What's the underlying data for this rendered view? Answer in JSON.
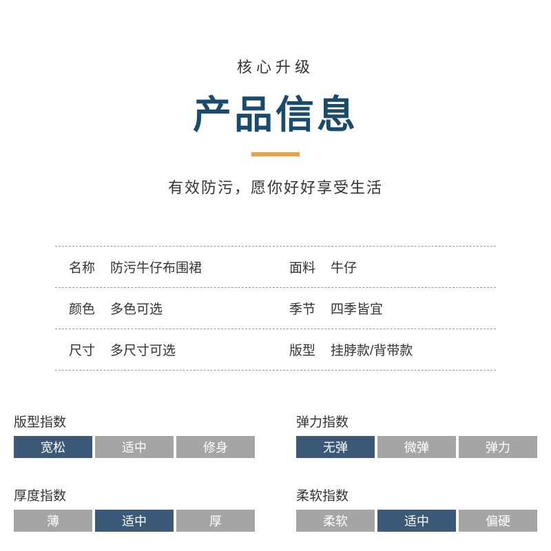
{
  "header": {
    "subtitle_top": "核心升级",
    "title": "产品信息",
    "subtitle_bottom": "有效防污，愿你好好享受生活"
  },
  "colors": {
    "title": "#1a4a6e",
    "underline": "#e6a23c",
    "seg_active": "#3c5a78",
    "seg_inactive": "#a5a5a5",
    "text": "#333333",
    "background": "#ffffff",
    "divider": "#999999"
  },
  "specs": {
    "rows": [
      {
        "left_label": "名称",
        "left_value": "防污牛仔布围裙",
        "right_label": "面料",
        "right_value": "牛仔"
      },
      {
        "left_label": "颜色",
        "left_value": "多色可选",
        "right_label": "季节",
        "right_value": "四季皆宜"
      },
      {
        "left_label": "尺寸",
        "left_value": "多尺寸可选",
        "right_label": "版型",
        "right_value": "挂脖款/背带款"
      }
    ]
  },
  "indices": [
    {
      "title": "版型指数",
      "segments": [
        "宽松",
        "适中",
        "修身"
      ],
      "active": 0
    },
    {
      "title": "弹力指数",
      "segments": [
        "无弹",
        "微弹",
        "弹力"
      ],
      "active": 0
    },
    {
      "title": "厚度指数",
      "segments": [
        "薄",
        "适中",
        "厚"
      ],
      "active": 1
    },
    {
      "title": "柔软指数",
      "segments": [
        "柔软",
        "适中",
        "偏硬"
      ],
      "active": 1
    }
  ]
}
